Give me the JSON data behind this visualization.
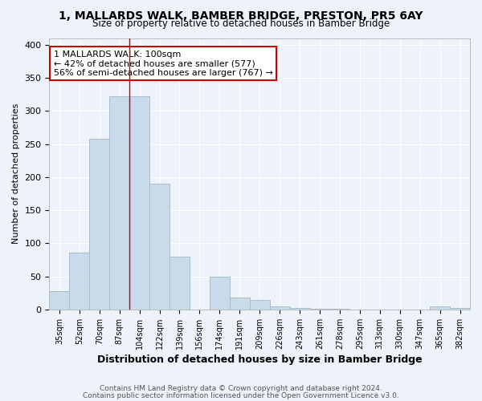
{
  "title": "1, MALLARDS WALK, BAMBER BRIDGE, PRESTON, PR5 6AY",
  "subtitle": "Size of property relative to detached houses in Bamber Bridge",
  "xlabel": "Distribution of detached houses by size in Bamber Bridge",
  "ylabel": "Number of detached properties",
  "footer1": "Contains HM Land Registry data © Crown copyright and database right 2024.",
  "footer2": "Contains public sector information licensed under the Open Government Licence v3.0.",
  "property_label": "1 MALLARDS WALK: 100sqm",
  "annotation_line1": "← 42% of detached houses are smaller (577)",
  "annotation_line2": "56% of semi-detached houses are larger (767) →",
  "bar_color": "#c9daea",
  "bar_edge_color": "#aabccc",
  "vline_color": "#cc0000",
  "annotation_box_color": "#cc0000",
  "bg_color": "#eef2fb",
  "grid_color": "#ffffff",
  "categories": [
    "35sqm",
    "52sqm",
    "70sqm",
    "87sqm",
    "104sqm",
    "122sqm",
    "139sqm",
    "156sqm",
    "174sqm",
    "191sqm",
    "209sqm",
    "226sqm",
    "243sqm",
    "261sqm",
    "278sqm",
    "295sqm",
    "313sqm",
    "330sqm",
    "347sqm",
    "365sqm",
    "382sqm"
  ],
  "values": [
    28,
    86,
    258,
    322,
    322,
    190,
    80,
    0,
    50,
    18,
    15,
    5,
    2,
    1,
    1,
    0,
    0,
    0,
    0,
    5,
    2
  ],
  "vline_x": 3.5,
  "ylim": [
    0,
    410
  ],
  "yticks": [
    0,
    50,
    100,
    150,
    200,
    250,
    300,
    350,
    400
  ]
}
